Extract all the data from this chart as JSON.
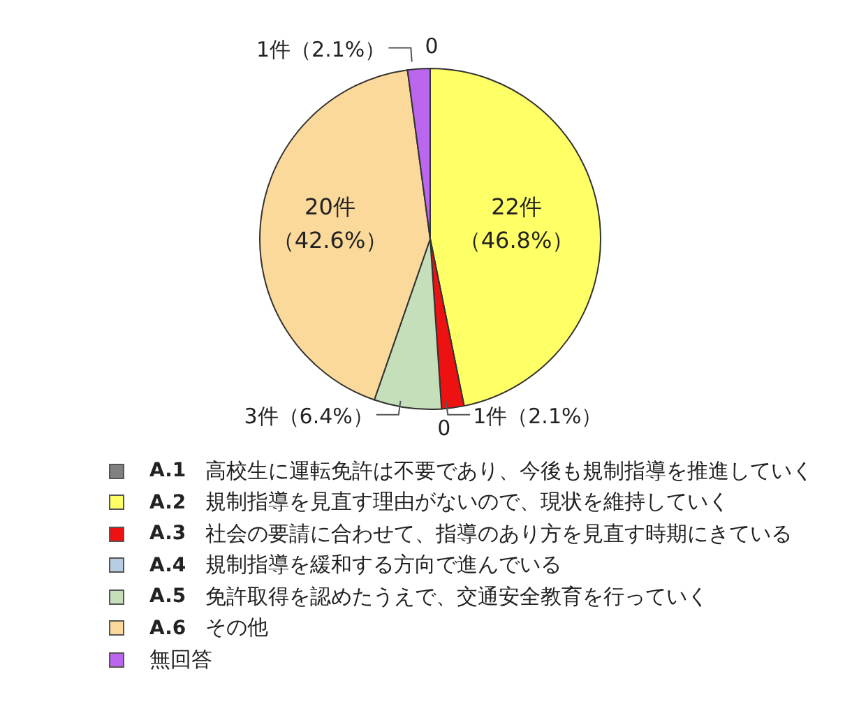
{
  "chart_data": {
    "type": "pie",
    "categories": [
      "A.1 高校生に運転免許は不要であり、今後も規制指導を推進していく",
      "A.2 規制指導を見直す理由がないので、現状を維持していく",
      "A.3 社会の要請に合わせて、指導のあり方を見直す時期にきている",
      "A.4 規制指導を緩和する方向で進んでいる",
      "A.5 免許取得を認めたうえで、交通安全教育を行っていく",
      "A.6 その他",
      "無回答"
    ],
    "values": [
      0,
      22,
      1,
      0,
      3,
      20,
      1
    ],
    "colors": [
      "#808080",
      "#ffff66",
      "#ee1111",
      "#b8cce4",
      "#c4dfb9",
      "#fbd99a",
      "#bb66ee"
    ],
    "value_labels": [
      "0",
      "22件（46.8%）",
      "1件（2.1%）",
      "0",
      "3件（6.4%）",
      "20件（42.6%）",
      "1件（2.1%）"
    ],
    "legend": "bottom"
  }
}
